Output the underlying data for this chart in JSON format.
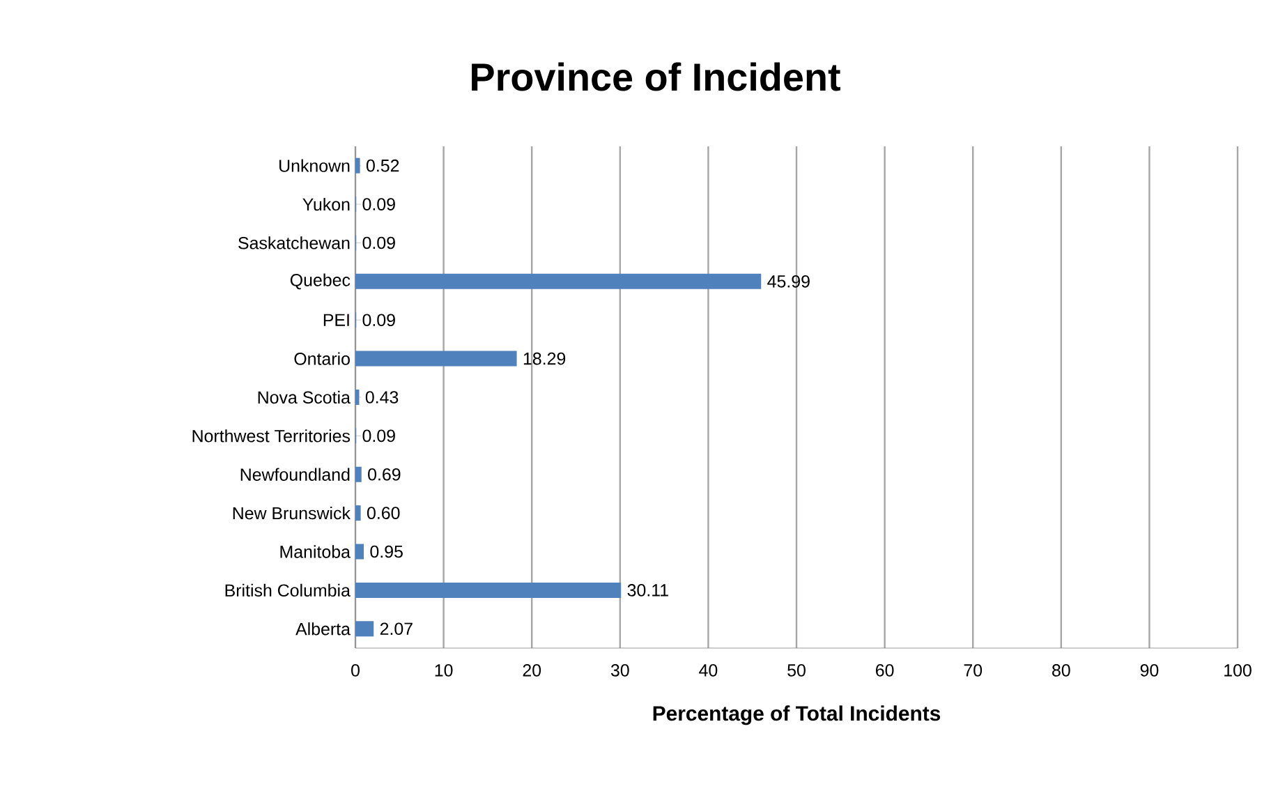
{
  "chart_data": {
    "type": "bar",
    "orientation": "horizontal",
    "title": "Province of Incident",
    "xlabel": "Percentage of Total Incidents",
    "categories": [
      "Unknown",
      "Yukon",
      "Saskatchewan",
      "Quebec",
      "PEI",
      "Ontario",
      "Nova Scotia",
      "Northwest Territories",
      "Newfoundland",
      "New Brunswick",
      "Manitoba",
      "British Columbia",
      "Alberta"
    ],
    "values": [
      0.52,
      0.09,
      0.09,
      45.99,
      0.09,
      18.29,
      0.43,
      0.09,
      0.69,
      0.6,
      0.95,
      30.11,
      2.07
    ],
    "value_labels": [
      "0.52",
      "0.09",
      "0.09",
      "45.99",
      "0.09",
      "18.29",
      "0.43",
      "0.09",
      "0.69",
      "0.60",
      "0.95",
      "30.11",
      "2.07"
    ],
    "color": "#4f81bd",
    "xlim": [
      0,
      100
    ],
    "xticks": [
      0,
      10,
      20,
      30,
      40,
      50,
      60,
      70,
      80,
      90,
      100
    ],
    "grid": "x"
  }
}
